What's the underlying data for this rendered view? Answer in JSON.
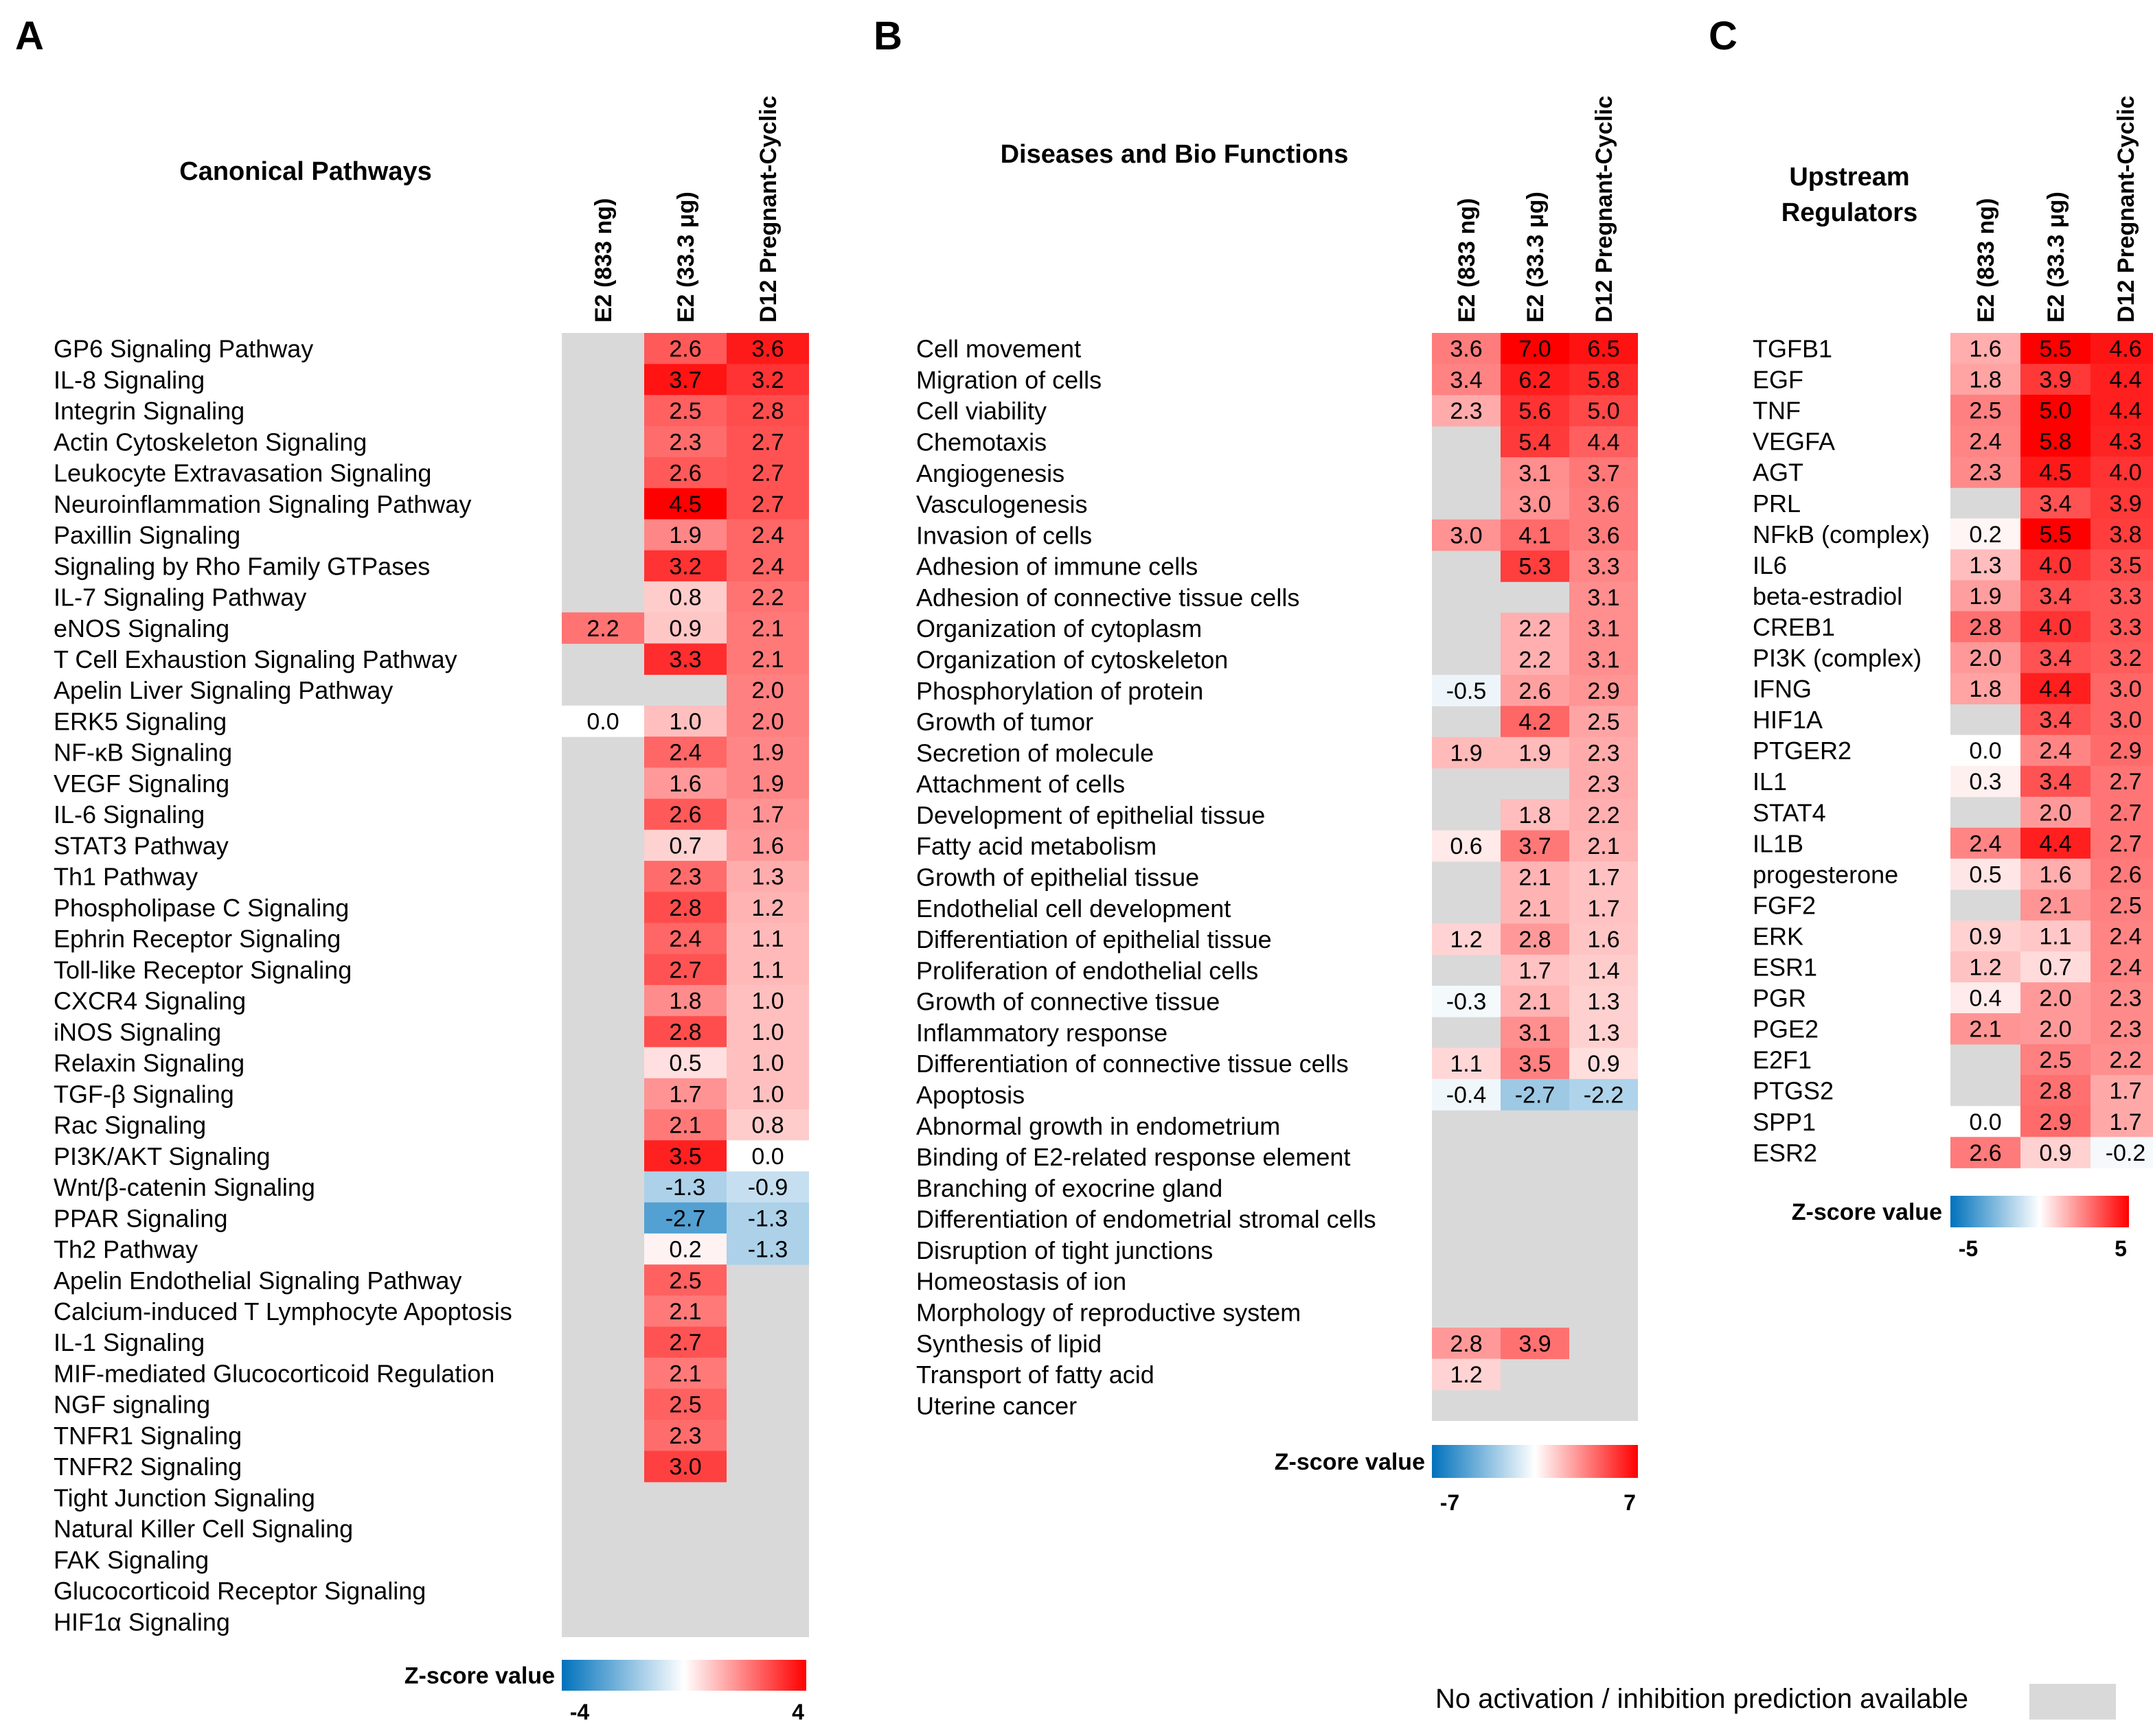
{
  "colors": {
    "na": "#d9d9d9",
    "negative": "#0072bc",
    "zero": "#ffffff",
    "positive": "#ff0000"
  },
  "na_legend_text": "No activation / inhibition prediction available",
  "chart_data": [
    {
      "type": "heatmap",
      "panel": "A",
      "title": "Canonical Pathways",
      "columns": [
        "E2 (833 ng)",
        "E2 (33.3 μg)",
        "D12 Pregnant-Cyclic"
      ],
      "legend": {
        "title": "Z-score value",
        "min": -4,
        "max": 4,
        "min_label": "-4",
        "max_label": "4"
      },
      "rows": [
        {
          "label": "GP6 Signaling Pathway",
          "values": [
            null,
            2.6,
            3.6
          ]
        },
        {
          "label": "IL-8 Signaling",
          "values": [
            null,
            3.7,
            3.2
          ]
        },
        {
          "label": "Integrin Signaling",
          "values": [
            null,
            2.5,
            2.8
          ]
        },
        {
          "label": "Actin Cytoskeleton Signaling",
          "values": [
            null,
            2.3,
            2.7
          ]
        },
        {
          "label": "Leukocyte Extravasation Signaling",
          "values": [
            null,
            2.6,
            2.7
          ]
        },
        {
          "label": "Neuroinflammation Signaling Pathway",
          "values": [
            null,
            4.5,
            2.7
          ]
        },
        {
          "label": "Paxillin Signaling",
          "values": [
            null,
            1.9,
            2.4
          ]
        },
        {
          "label": "Signaling by Rho Family GTPases",
          "values": [
            null,
            3.2,
            2.4
          ]
        },
        {
          "label": "IL-7 Signaling Pathway",
          "values": [
            null,
            0.8,
            2.2
          ]
        },
        {
          "label": "eNOS Signaling",
          "values": [
            2.2,
            0.9,
            2.1
          ]
        },
        {
          "label": "T Cell Exhaustion Signaling Pathway",
          "values": [
            null,
            3.3,
            2.1
          ]
        },
        {
          "label": "Apelin Liver Signaling Pathway",
          "values": [
            null,
            null,
            2.0
          ]
        },
        {
          "label": "ERK5 Signaling",
          "values": [
            0.0,
            1.0,
            2.0
          ]
        },
        {
          "label": "NF-κB Signaling",
          "values": [
            null,
            2.4,
            1.9
          ]
        },
        {
          "label": "VEGF Signaling",
          "values": [
            null,
            1.6,
            1.9
          ]
        },
        {
          "label": "IL-6 Signaling",
          "values": [
            null,
            2.6,
            1.7
          ]
        },
        {
          "label": "STAT3 Pathway",
          "values": [
            null,
            0.7,
            1.6
          ]
        },
        {
          "label": "Th1 Pathway",
          "values": [
            null,
            2.3,
            1.3
          ]
        },
        {
          "label": "Phospholipase C Signaling",
          "values": [
            null,
            2.8,
            1.2
          ]
        },
        {
          "label": "Ephrin Receptor Signaling",
          "values": [
            null,
            2.4,
            1.1
          ]
        },
        {
          "label": "Toll-like Receptor Signaling",
          "values": [
            null,
            2.7,
            1.1
          ]
        },
        {
          "label": "CXCR4 Signaling",
          "values": [
            null,
            1.8,
            1.0
          ]
        },
        {
          "label": "iNOS Signaling",
          "values": [
            null,
            2.8,
            1.0
          ]
        },
        {
          "label": "Relaxin Signaling",
          "values": [
            null,
            0.5,
            1.0
          ]
        },
        {
          "label": "TGF-β Signaling",
          "values": [
            null,
            1.7,
            1.0
          ]
        },
        {
          "label": "Rac Signaling",
          "values": [
            null,
            2.1,
            0.8
          ]
        },
        {
          "label": "PI3K/AKT Signaling",
          "values": [
            null,
            3.5,
            0.0
          ]
        },
        {
          "label": "Wnt/β-catenin Signaling",
          "values": [
            null,
            -1.3,
            -0.9
          ]
        },
        {
          "label": "PPAR Signaling",
          "values": [
            null,
            -2.7,
            -1.3
          ]
        },
        {
          "label": "Th2 Pathway",
          "values": [
            null,
            0.2,
            -1.3
          ]
        },
        {
          "label": "Apelin Endothelial Signaling Pathway",
          "values": [
            null,
            2.5,
            null
          ]
        },
        {
          "label": "Calcium-induced T Lymphocyte Apoptosis",
          "values": [
            null,
            2.1,
            null
          ]
        },
        {
          "label": "IL-1 Signaling",
          "values": [
            null,
            2.7,
            null
          ]
        },
        {
          "label": "MIF-mediated Glucocorticoid Regulation",
          "values": [
            null,
            2.1,
            null
          ]
        },
        {
          "label": "NGF signaling",
          "values": [
            null,
            2.5,
            null
          ]
        },
        {
          "label": "TNFR1 Signaling",
          "values": [
            null,
            2.3,
            null
          ]
        },
        {
          "label": "TNFR2 Signaling",
          "values": [
            null,
            3.0,
            null
          ]
        },
        {
          "label": "Tight Junction Signaling",
          "values": [
            null,
            null,
            null
          ]
        },
        {
          "label": "Natural Killer Cell Signaling",
          "values": [
            null,
            null,
            null
          ]
        },
        {
          "label": "FAK Signaling",
          "values": [
            null,
            null,
            null
          ]
        },
        {
          "label": "Glucocorticoid Receptor Signaling",
          "values": [
            null,
            null,
            null
          ]
        },
        {
          "label": "HIF1α Signaling",
          "values": [
            null,
            null,
            null
          ]
        }
      ]
    },
    {
      "type": "heatmap",
      "panel": "B",
      "title": "Diseases and Bio Functions",
      "columns": [
        "E2 (833 ng)",
        "E2 (33.3 μg)",
        "D12 Pregnant-Cyclic"
      ],
      "legend": {
        "title": "Z-score value",
        "min": -7,
        "max": 7,
        "min_label": "-7",
        "max_label": "7"
      },
      "rows": [
        {
          "label": "Cell movement",
          "values": [
            3.6,
            7.0,
            6.5
          ]
        },
        {
          "label": "Migration of cells",
          "values": [
            3.4,
            6.2,
            5.8
          ]
        },
        {
          "label": "Cell viability",
          "values": [
            2.3,
            5.6,
            5.0
          ]
        },
        {
          "label": "Chemotaxis",
          "values": [
            null,
            5.4,
            4.4
          ]
        },
        {
          "label": "Angiogenesis",
          "values": [
            null,
            3.1,
            3.7
          ]
        },
        {
          "label": "Vasculogenesis",
          "values": [
            null,
            3.0,
            3.6
          ]
        },
        {
          "label": "Invasion of cells",
          "values": [
            3.0,
            4.1,
            3.6
          ]
        },
        {
          "label": "Adhesion of immune cells",
          "values": [
            null,
            5.3,
            3.3
          ]
        },
        {
          "label": "Adhesion of connective tissue cells",
          "values": [
            null,
            null,
            3.1
          ]
        },
        {
          "label": "Organization of cytoplasm",
          "values": [
            null,
            2.2,
            3.1
          ]
        },
        {
          "label": "Organization of cytoskeleton",
          "values": [
            null,
            2.2,
            3.1
          ]
        },
        {
          "label": "Phosphorylation of protein",
          "values": [
            -0.5,
            2.6,
            2.9
          ]
        },
        {
          "label": "Growth of tumor",
          "values": [
            null,
            4.2,
            2.5
          ]
        },
        {
          "label": "Secretion of molecule",
          "values": [
            1.9,
            1.9,
            2.3
          ]
        },
        {
          "label": "Attachment of cells",
          "values": [
            null,
            null,
            2.3
          ]
        },
        {
          "label": "Development of epithelial tissue",
          "values": [
            null,
            1.8,
            2.2
          ]
        },
        {
          "label": "Fatty acid metabolism",
          "values": [
            0.6,
            3.7,
            2.1
          ]
        },
        {
          "label": "Growth of epithelial tissue",
          "values": [
            null,
            2.1,
            1.7
          ]
        },
        {
          "label": "Endothelial cell development",
          "values": [
            null,
            2.1,
            1.7
          ]
        },
        {
          "label": "Differentiation of epithelial tissue",
          "values": [
            1.2,
            2.8,
            1.6
          ]
        },
        {
          "label": "Proliferation of endothelial cells",
          "values": [
            null,
            1.7,
            1.4
          ]
        },
        {
          "label": "Growth of connective tissue",
          "values": [
            -0.3,
            2.1,
            1.3
          ]
        },
        {
          "label": "Inflammatory response",
          "values": [
            null,
            3.1,
            1.3
          ]
        },
        {
          "label": "Differentiation of connective tissue cells",
          "values": [
            1.1,
            3.5,
            0.9
          ]
        },
        {
          "label": "Apoptosis",
          "values": [
            -0.4,
            -2.7,
            -2.2
          ]
        },
        {
          "label": "Abnormal growth in endometrium",
          "values": [
            null,
            null,
            null
          ]
        },
        {
          "label": "Binding of E2-related response element",
          "values": [
            null,
            null,
            null
          ]
        },
        {
          "label": "Branching of exocrine gland",
          "values": [
            null,
            null,
            null
          ]
        },
        {
          "label": "Differentiation of endometrial stromal cells",
          "values": [
            null,
            null,
            null
          ]
        },
        {
          "label": "Disruption of tight junctions",
          "values": [
            null,
            null,
            null
          ]
        },
        {
          "label": "Homeostasis of ion",
          "values": [
            null,
            null,
            null
          ]
        },
        {
          "label": "Morphology of reproductive system",
          "values": [
            null,
            null,
            null
          ]
        },
        {
          "label": "Synthesis of lipid",
          "values": [
            2.8,
            3.9,
            null
          ]
        },
        {
          "label": "Transport of fatty acid",
          "values": [
            1.2,
            null,
            null
          ]
        },
        {
          "label": "Uterine cancer",
          "values": [
            null,
            null,
            null
          ]
        }
      ]
    },
    {
      "type": "heatmap",
      "panel": "C",
      "title_lines": [
        "Upstream",
        "Regulators"
      ],
      "columns": [
        "E2 (833 ng)",
        "E2 (33.3 μg)",
        "D12 Pregnant-Cyclic"
      ],
      "legend": {
        "title": "Z-score value",
        "min": -5,
        "max": 5,
        "min_label": "-5",
        "max_label": "5"
      },
      "rows": [
        {
          "label": "TGFB1",
          "values": [
            1.6,
            5.5,
            4.6
          ]
        },
        {
          "label": "EGF",
          "values": [
            1.8,
            3.9,
            4.4
          ]
        },
        {
          "label": "TNF",
          "values": [
            2.5,
            5.0,
            4.4
          ]
        },
        {
          "label": "VEGFA",
          "values": [
            2.4,
            5.8,
            4.3
          ]
        },
        {
          "label": "AGT",
          "values": [
            2.3,
            4.5,
            4.0
          ]
        },
        {
          "label": "PRL",
          "values": [
            null,
            3.4,
            3.9
          ]
        },
        {
          "label": "NFkB (complex)",
          "values": [
            0.2,
            5.5,
            3.8
          ]
        },
        {
          "label": "IL6",
          "values": [
            1.3,
            4.0,
            3.5
          ]
        },
        {
          "label": "beta-estradiol",
          "values": [
            1.9,
            3.4,
            3.3
          ]
        },
        {
          "label": "CREB1",
          "values": [
            2.8,
            4.0,
            3.3
          ]
        },
        {
          "label": "PI3K (complex)",
          "values": [
            2.0,
            3.4,
            3.2
          ]
        },
        {
          "label": "IFNG",
          "values": [
            1.8,
            4.4,
            3.0
          ]
        },
        {
          "label": "HIF1A",
          "values": [
            null,
            3.4,
            3.0
          ]
        },
        {
          "label": "PTGER2",
          "values": [
            0.0,
            2.4,
            2.9
          ]
        },
        {
          "label": "IL1",
          "values": [
            0.3,
            3.4,
            2.7
          ]
        },
        {
          "label": "STAT4",
          "values": [
            null,
            2.0,
            2.7
          ]
        },
        {
          "label": "IL1B",
          "values": [
            2.4,
            4.4,
            2.7
          ]
        },
        {
          "label": "progesterone",
          "values": [
            0.5,
            1.6,
            2.6
          ]
        },
        {
          "label": "FGF2",
          "values": [
            null,
            2.1,
            2.5
          ]
        },
        {
          "label": "ERK",
          "values": [
            0.9,
            1.1,
            2.4
          ]
        },
        {
          "label": "ESR1",
          "values": [
            1.2,
            0.7,
            2.4
          ]
        },
        {
          "label": "PGR",
          "values": [
            0.4,
            2.0,
            2.3
          ]
        },
        {
          "label": "PGE2",
          "values": [
            2.1,
            2.0,
            2.3
          ]
        },
        {
          "label": "E2F1",
          "values": [
            null,
            2.5,
            2.2
          ]
        },
        {
          "label": "PTGS2",
          "values": [
            null,
            2.8,
            1.7
          ]
        },
        {
          "label": "SPP1",
          "values": [
            0.0,
            2.9,
            1.7
          ]
        },
        {
          "label": "ESR2",
          "values": [
            2.6,
            0.9,
            -0.2
          ]
        }
      ]
    }
  ]
}
